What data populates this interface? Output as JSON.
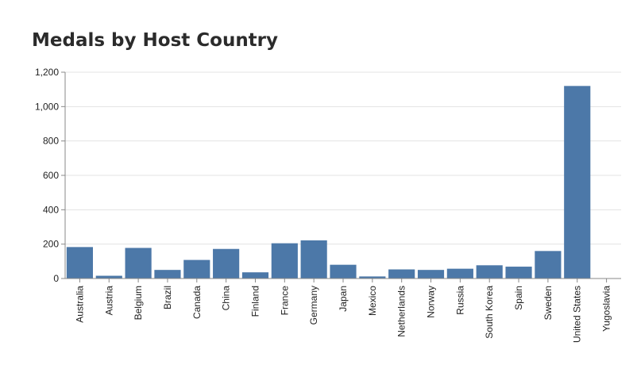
{
  "chart_data": {
    "type": "bar",
    "title": "Medals by Host Country",
    "categories": [
      "Australia",
      "Austria",
      "Belgium",
      "Brazil",
      "Canada",
      "China",
      "Finland",
      "France",
      "Germany",
      "Japan",
      "Mexico",
      "Netherlands",
      "Norway",
      "Russia",
      "South Korea",
      "Spain",
      "Sweden",
      "United States",
      "Yugoslavia"
    ],
    "values": [
      183,
      16,
      178,
      50,
      108,
      172,
      36,
      205,
      222,
      80,
      12,
      53,
      50,
      57,
      77,
      69,
      160,
      1120,
      0
    ],
    "ylim": [
      0,
      1200
    ],
    "yticks": [
      0,
      200,
      400,
      600,
      800,
      1000,
      1200
    ],
    "ytick_labels": [
      "0",
      "200",
      "400",
      "600",
      "800",
      "1,000",
      "1,200"
    ],
    "xlabel": "",
    "ylabel": "",
    "grid": true,
    "bar_color": "#4c78a8"
  }
}
